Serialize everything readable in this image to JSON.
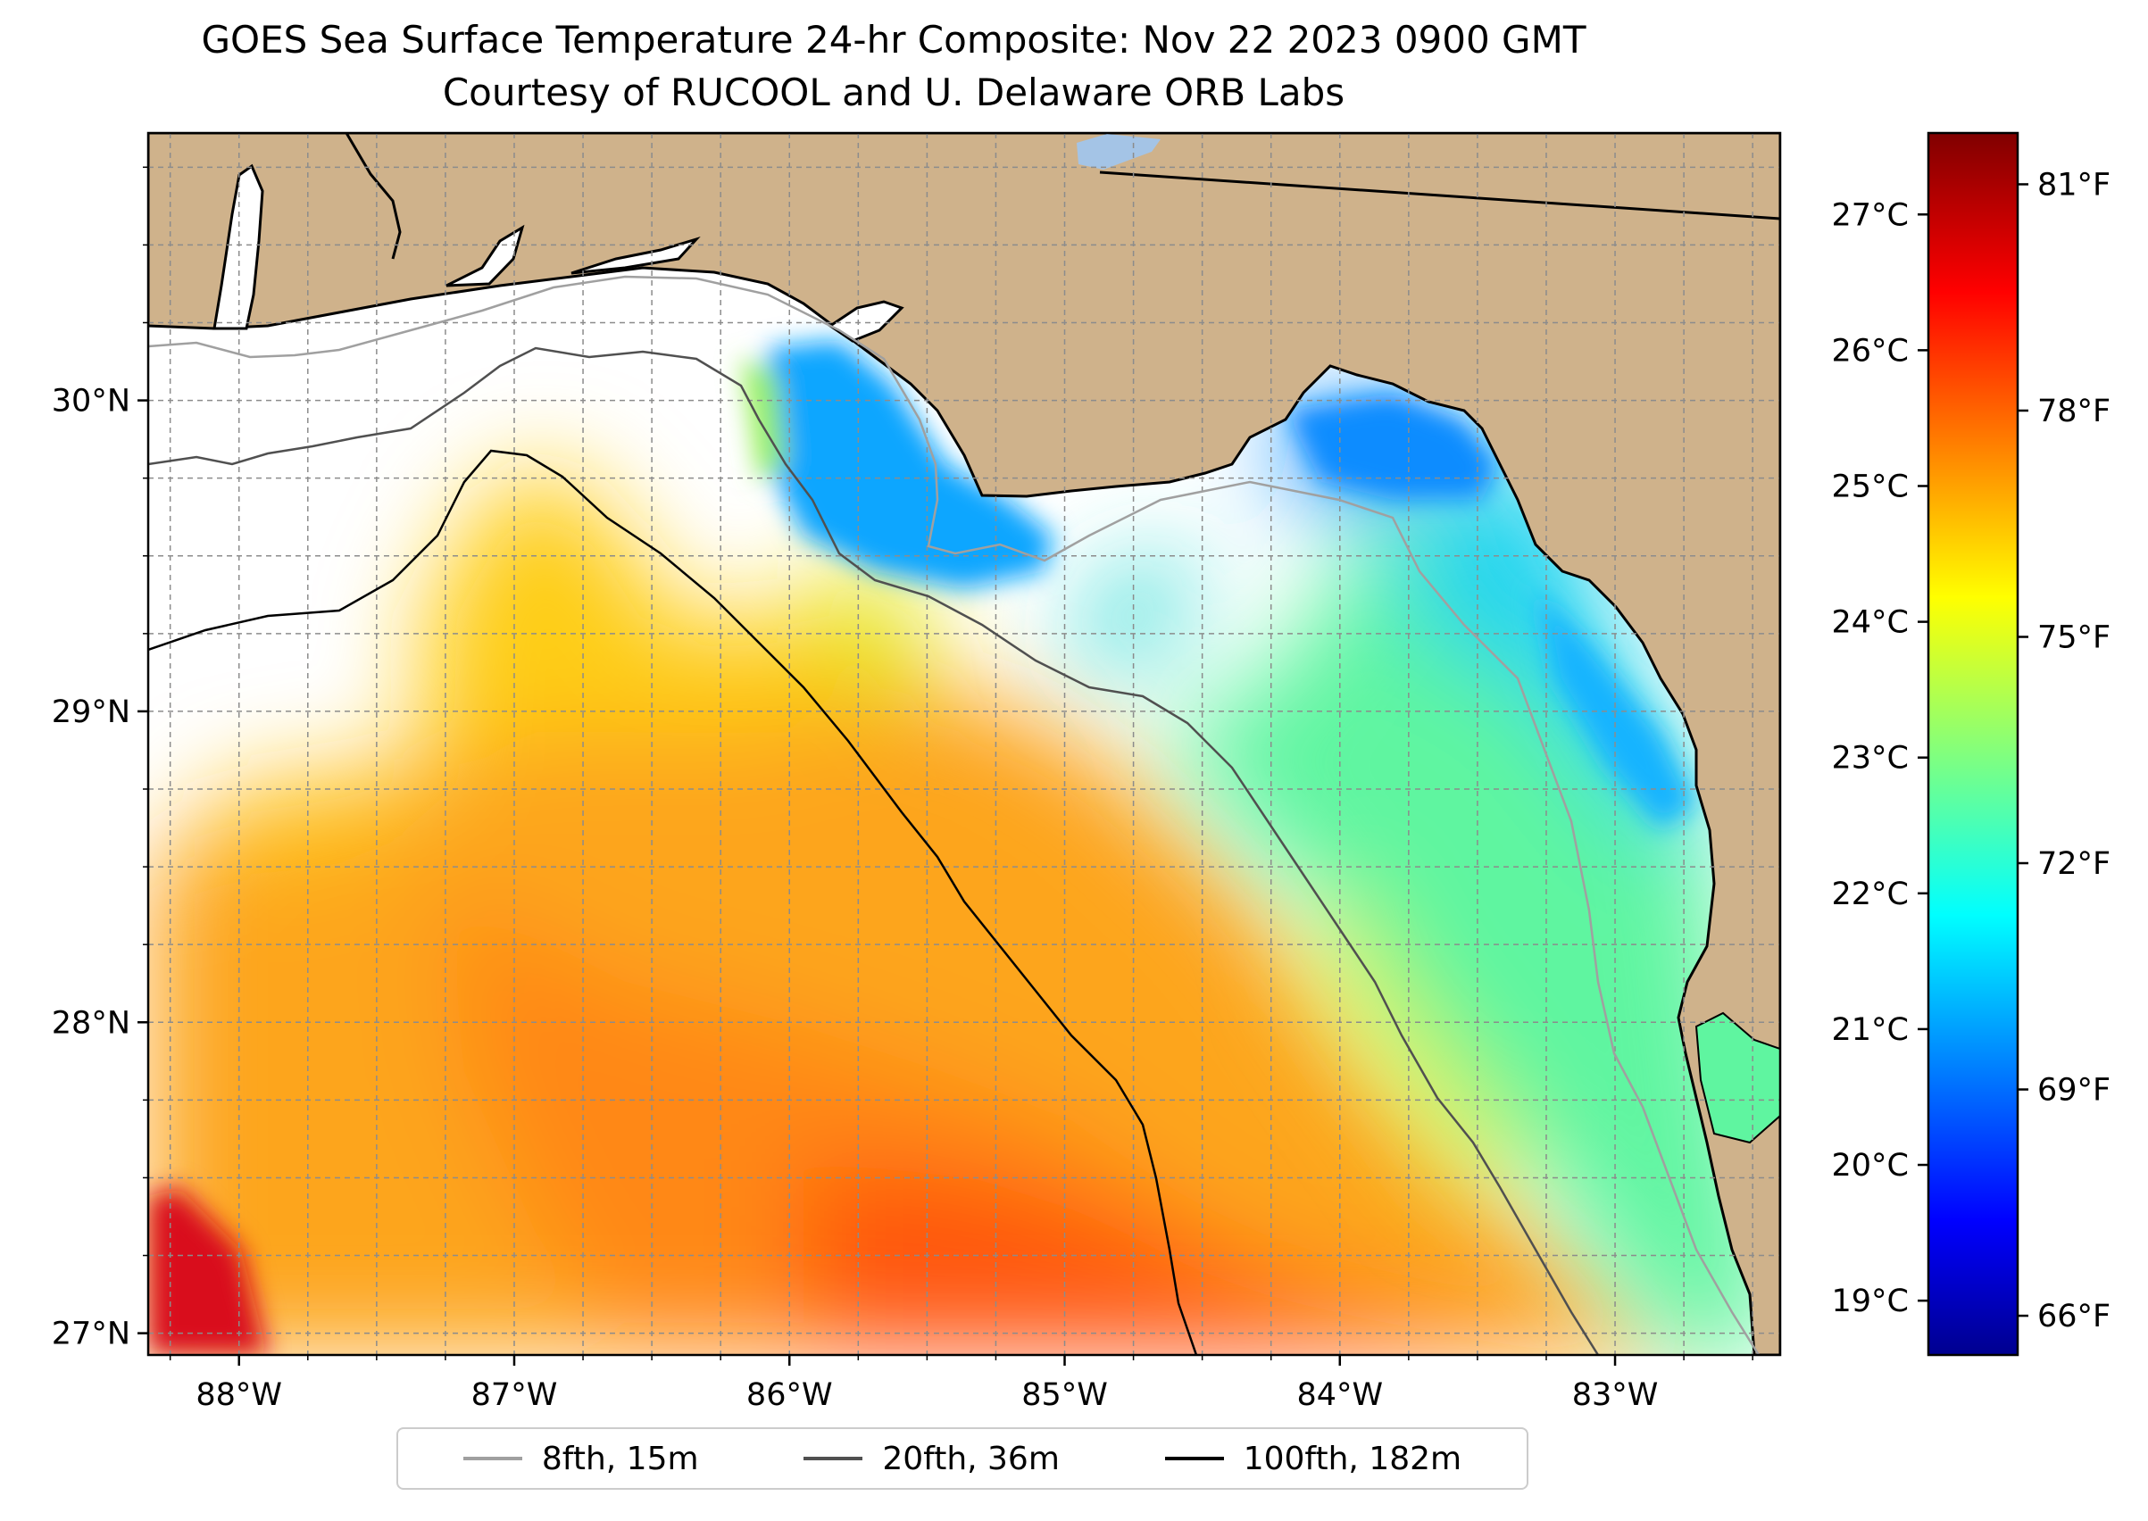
{
  "title": {
    "line1": "GOES Sea Surface Temperature 24-hr Composite: Nov 22 2023 0900 GMT",
    "line2": "Courtesy of RUCOOL and U. Delaware ORB Labs"
  },
  "map": {
    "extent": {
      "lon_min": -88.33,
      "lon_max": -82.4,
      "lat_min": 26.93,
      "lat_max": 30.86
    },
    "lon_ticks": [
      -88,
      -87,
      -86,
      -85,
      -84,
      -83
    ],
    "lon_tick_labels": [
      "88°W",
      "87°W",
      "86°W",
      "85°W",
      "84°W",
      "83°W"
    ],
    "lat_ticks": [
      27,
      28,
      29,
      30
    ],
    "lat_tick_labels": [
      "27°N",
      "28°N",
      "29°N",
      "30°N"
    ],
    "gridlines": "on, dashed gray, every 0.25°",
    "land_color": "#cfb28b",
    "no_data_color": "#ffffff",
    "lake_color": "#a4c4e6"
  },
  "colorbar": {
    "colormap": "jet",
    "celsius_range": [
      18.6,
      27.6
    ],
    "celsius_ticks": [
      19,
      20,
      21,
      22,
      23,
      24,
      25,
      26,
      27
    ],
    "celsius_labels": [
      "19°C",
      "20°C",
      "21°C",
      "22°C",
      "23°C",
      "24°C",
      "25°C",
      "26°C",
      "27°C"
    ],
    "fahrenheit_ticks": [
      66,
      69,
      72,
      75,
      78,
      81
    ],
    "fahrenheit_labels": [
      "66°F",
      "69°F",
      "72°F",
      "75°F",
      "78°F",
      "81°F"
    ]
  },
  "legend": {
    "placement": "bottom-center",
    "items": [
      {
        "label": "8fth, 15m",
        "color": "#a0a0a0"
      },
      {
        "label": "20fth, 36m",
        "color": "#505050"
      },
      {
        "label": "100fth, 182m",
        "color": "#000000"
      }
    ]
  }
}
